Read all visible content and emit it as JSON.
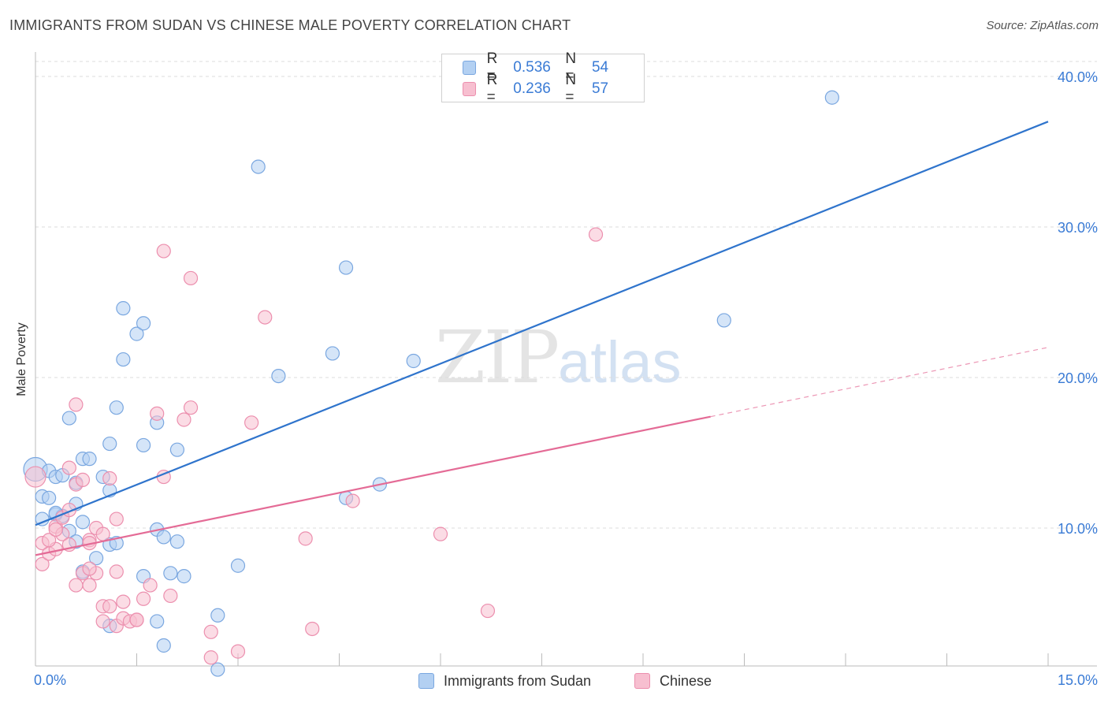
{
  "title": "IMMIGRANTS FROM SUDAN VS CHINESE MALE POVERTY CORRELATION CHART",
  "source": "Source: ZipAtlas.com",
  "watermark": {
    "zip": "ZIP",
    "atlas": "atlas"
  },
  "legend_top": [
    {
      "r_label": "R =",
      "r_value": "0.536",
      "n_label": "N =",
      "n_value": "54"
    },
    {
      "r_label": "R =",
      "r_value": "0.236",
      "n_label": "N =",
      "n_value": "57"
    }
  ],
  "colors": {
    "blue_fill": "#b3d0f2",
    "blue_stroke": "#7aa7e0",
    "blue_line": "#2f74cc",
    "pink_fill": "#f7bfd0",
    "pink_stroke": "#ec8fae",
    "pink_line": "#e46b96",
    "tick_text": "#3a7bd5"
  },
  "chart_data": {
    "type": "scatter",
    "title": "IMMIGRANTS FROM SUDAN VS CHINESE MALE POVERTY CORRELATION CHART",
    "xlabel": "",
    "ylabel": "Male Poverty",
    "xlim": [
      0,
      15
    ],
    "ylim": [
      0,
      42
    ],
    "x_tick_labels": [
      {
        "value": 0,
        "label": "0.0%"
      },
      {
        "value": 15,
        "label": "15.0%"
      }
    ],
    "y_tick_labels": [
      {
        "value": 10,
        "label": "10.0%"
      },
      {
        "value": 20,
        "label": "20.0%"
      },
      {
        "value": 30,
        "label": "30.0%"
      },
      {
        "value": 40,
        "label": "40.0%"
      }
    ],
    "grid": true,
    "series": [
      {
        "name": "Immigrants from Sudan",
        "color": "blue",
        "trend": {
          "x0": 0.0,
          "y0": 10.2,
          "x1": 15.0,
          "y1": 37.0,
          "solid_until": 15.0
        },
        "points": [
          [
            0.0,
            13.9
          ],
          [
            0.1,
            12.1
          ],
          [
            0.2,
            13.8
          ],
          [
            0.1,
            10.6
          ],
          [
            0.3,
            13.4
          ],
          [
            0.3,
            10.9
          ],
          [
            0.2,
            12.0
          ],
          [
            0.4,
            10.8
          ],
          [
            0.5,
            9.8
          ],
          [
            0.6,
            9.1
          ],
          [
            0.6,
            11.6
          ],
          [
            0.7,
            10.4
          ],
          [
            0.6,
            13.0
          ],
          [
            0.7,
            14.6
          ],
          [
            0.8,
            14.6
          ],
          [
            0.9,
            8.0
          ],
          [
            1.1,
            8.9
          ],
          [
            1.1,
            12.5
          ],
          [
            1.0,
            13.4
          ],
          [
            1.2,
            9.0
          ],
          [
            1.2,
            18.0
          ],
          [
            1.3,
            21.2
          ],
          [
            1.1,
            3.5
          ],
          [
            1.3,
            24.6
          ],
          [
            1.5,
            22.9
          ],
          [
            1.6,
            23.6
          ],
          [
            1.6,
            15.5
          ],
          [
            1.6,
            6.8
          ],
          [
            1.8,
            17.0
          ],
          [
            1.8,
            9.9
          ],
          [
            1.9,
            9.4
          ],
          [
            2.1,
            15.2
          ],
          [
            2.1,
            9.1
          ],
          [
            2.0,
            7.0
          ],
          [
            1.8,
            3.8
          ],
          [
            1.9,
            2.2
          ],
          [
            2.7,
            4.2
          ],
          [
            2.7,
            0.6
          ],
          [
            3.0,
            7.5
          ],
          [
            3.3,
            34.0
          ],
          [
            3.6,
            20.1
          ],
          [
            4.4,
            21.6
          ],
          [
            4.6,
            27.3
          ],
          [
            4.6,
            12.0
          ],
          [
            5.1,
            12.9
          ],
          [
            5.6,
            21.1
          ],
          [
            10.2,
            23.8
          ],
          [
            11.8,
            38.6
          ],
          [
            0.7,
            7.1
          ],
          [
            0.4,
            13.5
          ],
          [
            0.5,
            17.3
          ],
          [
            1.1,
            15.6
          ],
          [
            0.3,
            11.0
          ],
          [
            2.2,
            6.8
          ]
        ]
      },
      {
        "name": "Chinese",
        "color": "pink",
        "trend": {
          "x0": 0.0,
          "y0": 8.2,
          "x1": 15.0,
          "y1": 22.0,
          "solid_until": 10.0
        },
        "points": [
          [
            0.0,
            13.4
          ],
          [
            0.1,
            9.0
          ],
          [
            0.1,
            7.6
          ],
          [
            0.2,
            8.3
          ],
          [
            0.3,
            10.1
          ],
          [
            0.3,
            8.6
          ],
          [
            0.4,
            9.6
          ],
          [
            0.4,
            10.7
          ],
          [
            0.5,
            11.2
          ],
          [
            0.5,
            14.0
          ],
          [
            0.6,
            12.9
          ],
          [
            0.6,
            6.2
          ],
          [
            0.7,
            7.0
          ],
          [
            0.7,
            13.2
          ],
          [
            0.8,
            9.2
          ],
          [
            0.8,
            9.0
          ],
          [
            0.8,
            6.2
          ],
          [
            0.9,
            10.0
          ],
          [
            0.9,
            7.0
          ],
          [
            1.0,
            4.8
          ],
          [
            1.0,
            9.6
          ],
          [
            1.1,
            13.3
          ],
          [
            1.1,
            4.8
          ],
          [
            1.2,
            3.5
          ],
          [
            1.2,
            7.1
          ],
          [
            1.3,
            4.0
          ],
          [
            1.3,
            5.1
          ],
          [
            1.4,
            3.8
          ],
          [
            1.5,
            3.9
          ],
          [
            1.6,
            5.3
          ],
          [
            1.7,
            6.2
          ],
          [
            1.8,
            17.6
          ],
          [
            1.9,
            13.4
          ],
          [
            1.9,
            28.4
          ],
          [
            2.0,
            5.5
          ],
          [
            2.2,
            17.2
          ],
          [
            2.3,
            26.6
          ],
          [
            2.3,
            18.0
          ],
          [
            2.6,
            1.4
          ],
          [
            2.6,
            3.1
          ],
          [
            3.0,
            1.8
          ],
          [
            3.2,
            17.0
          ],
          [
            3.4,
            24.0
          ],
          [
            4.0,
            9.3
          ],
          [
            4.1,
            3.3
          ],
          [
            4.7,
            11.8
          ],
          [
            6.0,
            9.6
          ],
          [
            6.7,
            4.5
          ],
          [
            8.3,
            29.5
          ],
          [
            0.6,
            18.2
          ],
          [
            0.2,
            9.2
          ],
          [
            0.5,
            8.9
          ],
          [
            1.0,
            3.8
          ],
          [
            1.2,
            10.6
          ],
          [
            0.8,
            7.3
          ],
          [
            1.5,
            3.9
          ],
          [
            0.3,
            9.9
          ]
        ]
      }
    ]
  }
}
